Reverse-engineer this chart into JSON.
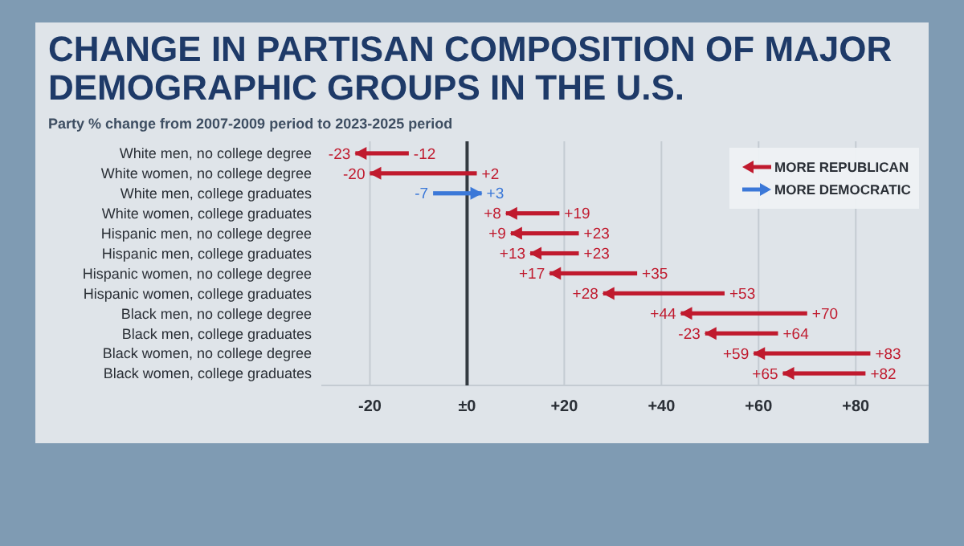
{
  "chart_data": {
    "type": "bar",
    "orientation": "horizontal",
    "title": "CHANGE IN PARTISAN COMPOSITION OF MAJOR DEMOGRAPHIC GROUPS IN THE U.S.",
    "subtitle": "Party % change from 2007-2009 period to 2023-2025 period",
    "categories": [
      "White men, no college degree",
      "White women, no college degree",
      "White men, college graduates",
      "White women, college graduates",
      "Hispanic men, no college degree",
      "Hispanic men, college graduates",
      "Hispanic women, no college degree",
      "Hispanic women, college graduates",
      "Black men, no college degree",
      "Black men, college graduates",
      "Black women, no college degree",
      "Black women, college graduates"
    ],
    "series": [
      {
        "name": "MORE REPUBLICAN",
        "color": "#c01a2e",
        "base": [
          -12,
          2,
          null,
          19,
          23,
          23,
          35,
          53,
          70,
          64,
          83,
          82
        ],
        "values": [
          -11,
          -22,
          null,
          -11,
          -14,
          -10,
          -18,
          -25,
          -26,
          -15,
          -24,
          -17
        ]
      },
      {
        "name": "MORE DEMOCRATIC",
        "color": "#3b78d8",
        "base": [
          null,
          null,
          -7,
          null,
          null,
          null,
          null,
          null,
          null,
          null,
          null,
          null
        ],
        "values": [
          null,
          null,
          10,
          null,
          null,
          null,
          null,
          null,
          null,
          null,
          null,
          null
        ]
      }
    ],
    "xlim": [
      -30,
      95
    ],
    "xticks": [
      -20,
      {
        "value": 0,
        "label": "±0"
      },
      {
        "value": 20,
        "label": "+20"
      },
      {
        "value": 40,
        "label": "+40"
      },
      {
        "value": 60,
        "label": "+60"
      },
      {
        "value": 80,
        "label": "+80"
      }
    ],
    "grid": "x",
    "legend": "top right",
    "ref_lines": [
      {
        "axis": "x",
        "value": 0,
        "color": "#333a40"
      }
    ],
    "annotations": [
      {
        "text": "-23",
        "x": -23,
        "y": "White men, no college degree"
      },
      {
        "text": "-12",
        "x": -12,
        "y": "White men, no college degree"
      },
      {
        "text": "-20",
        "x": -20,
        "y": "White women, no college degree"
      },
      {
        "text": "+2",
        "x": 2,
        "y": "White women, no college degree"
      },
      {
        "text": "-7",
        "x": -7,
        "y": "White men, college graduates"
      },
      {
        "text": "+3",
        "x": 3,
        "y": "White men, college graduates"
      },
      {
        "text": "+8",
        "x": 8,
        "y": "White women, college graduates"
      },
      {
        "text": "+19",
        "x": 19,
        "y": "White women, college graduates"
      },
      {
        "text": "+9",
        "x": 9,
        "y": "Hispanic men, no college degree"
      },
      {
        "text": "+23",
        "x": 23,
        "y": "Hispanic men, no college degree"
      },
      {
        "text": "+13",
        "x": 13,
        "y": "Hispanic men, college graduates"
      },
      {
        "text": "+23",
        "x": 23,
        "y": "Hispanic men, college graduates"
      },
      {
        "text": "+17",
        "x": 17,
        "y": "Hispanic women, no college degree"
      },
      {
        "text": "+35",
        "x": 35,
        "y": "Hispanic women, no college degree"
      },
      {
        "text": "+28",
        "x": 28,
        "y": "Hispanic women, college graduates"
      },
      {
        "text": "+53",
        "x": 53,
        "y": "Hispanic women, college graduates"
      },
      {
        "text": "+44",
        "x": 44,
        "y": "Black men, no college degree"
      },
      {
        "text": "+70",
        "x": 70,
        "y": "Black men, no college degree"
      },
      {
        "text": "-23",
        "x": 49,
        "y": "Black men, college graduates"
      },
      {
        "text": "+64",
        "x": 64,
        "y": "Black men, college graduates"
      },
      {
        "text": "+59",
        "x": 59,
        "y": "Black women, no college degree"
      },
      {
        "text": "+83",
        "x": 83,
        "y": "Black women, no college degree"
      },
      {
        "text": "+65",
        "x": 65,
        "y": "Black women, college graduates"
      },
      {
        "text": "+82",
        "x": 82,
        "y": "Black women, college graduates"
      }
    ]
  }
}
